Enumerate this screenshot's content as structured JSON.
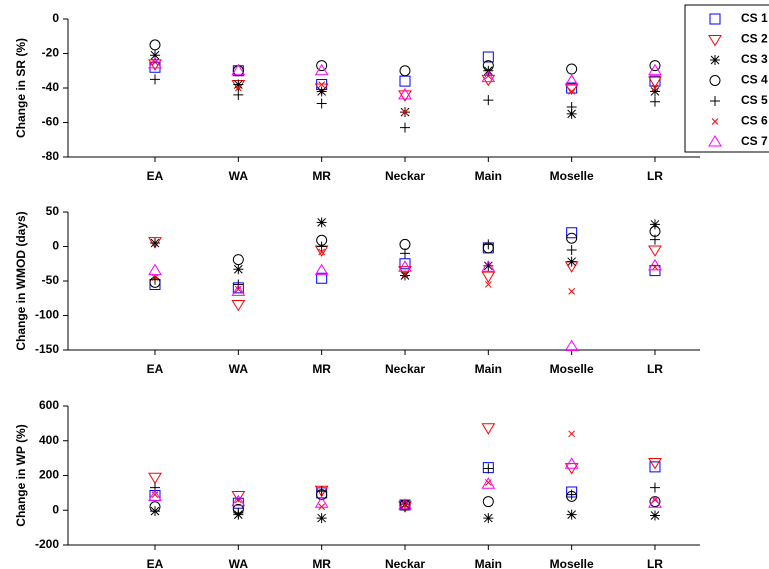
{
  "chart_data": [
    {
      "type": "scatter",
      "ylabel": "Change in SR (%)",
      "categories": [
        "EA",
        "WA",
        "MR",
        "Neckar",
        "Main",
        "Moselle",
        "LR"
      ],
      "ylim": [
        -80,
        0
      ],
      "yticks": [
        0,
        -20,
        -40,
        -60,
        -80
      ],
      "legend": "upper right",
      "series": [
        {
          "name": "CS 1",
          "color": "#0000ff",
          "marker": "square",
          "values": [
            -28,
            -30,
            -38,
            -36,
            -22,
            -40,
            -36
          ]
        },
        {
          "name": "CS 2",
          "color": "#ff0000",
          "marker": "triangle-down",
          "values": [
            -26,
            -38,
            -40,
            -44,
            -35,
            -40,
            -36
          ]
        },
        {
          "name": "CS 3",
          "color": "#000000",
          "marker": "asterisk",
          "values": [
            -21,
            -38,
            -42,
            -54,
            -30,
            -55,
            -42
          ]
        },
        {
          "name": "CS 4",
          "color": "#000000",
          "marker": "circle",
          "values": [
            -15,
            -30,
            -27,
            -30,
            -27,
            -29,
            -27
          ]
        },
        {
          "name": "CS 5",
          "color": "#000000",
          "marker": "plus",
          "values": [
            -35,
            -44,
            -49,
            -63,
            -47,
            -51,
            -48
          ]
        },
        {
          "name": "CS 6",
          "color": "#ff0000",
          "marker": "x",
          "values": [
            -25,
            -40,
            -38,
            -54,
            -33,
            -42,
            -40
          ]
        },
        {
          "name": "CS 7",
          "color": "#ff00ff",
          "marker": "triangle-up",
          "values": [
            -26,
            -30,
            -30,
            -44,
            -34,
            -36,
            -30
          ]
        }
      ]
    },
    {
      "type": "scatter",
      "ylabel": "Change in WMOD (days)",
      "categories": [
        "EA",
        "WA",
        "MR",
        "Neckar",
        "Main",
        "Moselle",
        "LR"
      ],
      "ylim": [
        -150,
        50
      ],
      "yticks": [
        50,
        0,
        -50,
        -100,
        -150
      ],
      "series": [
        {
          "color": "#0000ff",
          "marker": "square",
          "values": [
            -55,
            -60,
            -46,
            -25,
            -2,
            20,
            -35
          ]
        },
        {
          "color": "#ff0000",
          "marker": "triangle-down",
          "values": [
            7,
            -84,
            -5,
            -35,
            -43,
            -28,
            -5
          ]
        },
        {
          "color": "#000000",
          "marker": "asterisk",
          "values": [
            5,
            -33,
            35,
            -42,
            -28,
            -22,
            32
          ]
        },
        {
          "color": "#000000",
          "marker": "circle",
          "values": [
            -52,
            -19,
            9,
            3,
            -2,
            12,
            22
          ]
        },
        {
          "color": "#000000",
          "marker": "plus",
          "values": [
            -48,
            -55,
            0,
            -10,
            3,
            -5,
            10
          ]
        },
        {
          "color": "#ff0000",
          "marker": "x",
          "values": [
            -45,
            -62,
            -8,
            -40,
            -55,
            -65,
            -30
          ]
        },
        {
          "color": "#ff00ff",
          "marker": "triangle-up",
          "values": [
            -35,
            -65,
            -35,
            -30,
            -30,
            -145,
            -28
          ]
        }
      ]
    },
    {
      "type": "scatter",
      "ylabel": "Change in WP (%)",
      "categories": [
        "EA",
        "WA",
        "MR",
        "Neckar",
        "Main",
        "Moselle",
        "LR"
      ],
      "ylim": [
        -200,
        600
      ],
      "yticks": [
        -200,
        0,
        200,
        400,
        600
      ],
      "series": [
        {
          "color": "#0000ff",
          "marker": "square",
          "values": [
            85,
            40,
            100,
            30,
            245,
            105,
            250
          ]
        },
        {
          "color": "#ff0000",
          "marker": "triangle-down",
          "values": [
            190,
            85,
            115,
            25,
            475,
            245,
            275
          ]
        },
        {
          "color": "#000000",
          "marker": "asterisk",
          "values": [
            -5,
            -25,
            -45,
            35,
            -45,
            -25,
            -30
          ]
        },
        {
          "color": "#000000",
          "marker": "circle",
          "values": [
            20,
            5,
            90,
            30,
            50,
            80,
            50
          ]
        },
        {
          "color": "#000000",
          "marker": "plus",
          "values": [
            130,
            -15,
            110,
            35,
            240,
            90,
            130
          ]
        },
        {
          "color": "#ff0000",
          "marker": "x",
          "values": [
            90,
            60,
            20,
            30,
            160,
            440,
            60
          ]
        },
        {
          "color": "#ff00ff",
          "marker": "triangle-up",
          "values": [
            80,
            50,
            40,
            30,
            150,
            265,
            40
          ]
        }
      ]
    }
  ]
}
